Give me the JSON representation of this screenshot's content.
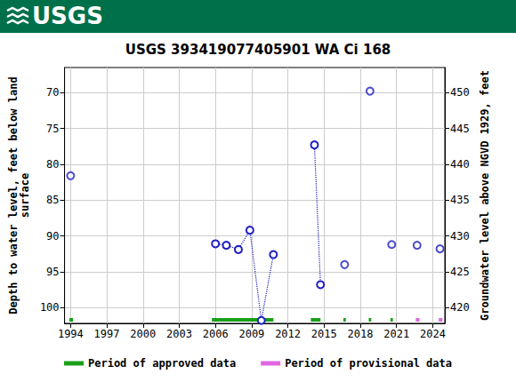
{
  "header": {
    "logo": "USGS"
  },
  "chart_data": {
    "type": "scatter",
    "title": "USGS 393419077405901 WA Ci 168",
    "y_label": [
      "Depth to water level, feet below land",
      "surface"
    ],
    "y2_label": "Groundwater level above NGVD 1929, feet",
    "xlim": [
      1993.5,
      2025.0
    ],
    "xticks": [
      1994,
      1997,
      2000,
      2003,
      2006,
      2009,
      2012,
      2015,
      2018,
      2021,
      2024
    ],
    "ylim": [
      102.2,
      66.5
    ],
    "yticks": [
      70,
      75,
      80,
      85,
      90,
      95,
      100
    ],
    "y2lim": [
      417.8,
      453.5
    ],
    "y2ticks": [
      420,
      425,
      430,
      435,
      440,
      445,
      450
    ],
    "grid": true,
    "legend": "bottom",
    "series": [
      {
        "type": "scatter",
        "color": "#2020c0",
        "marker": "circle_open",
        "x": [
          1994.0,
          2016.7,
          2018.8,
          2020.6,
          2022.7,
          2024.6
        ],
        "values": [
          81.6,
          94.0,
          69.8,
          91.2,
          91.3,
          91.8
        ]
      },
      {
        "type": "line",
        "color": "#2020c0",
        "marker": "circle_open",
        "line_style": "dotted",
        "x": [
          2006.0,
          2006.9,
          2007.9,
          2008.85,
          2009.8,
          2010.8
        ],
        "values": [
          91.1,
          91.3,
          91.9,
          89.2,
          101.8,
          92.6
        ]
      },
      {
        "type": "line",
        "color": "#2020c0",
        "marker": "circle_open",
        "line_style": "dotted",
        "x": [
          2014.2,
          2014.7
        ],
        "values": [
          77.3,
          96.8
        ]
      }
    ],
    "periods": [
      {
        "name": "Period of approved data",
        "color": "#1a9f1a",
        "ranges": [
          [
            1993.9,
            1994.2
          ],
          [
            2005.7,
            2010.8
          ],
          [
            2013.9,
            2014.7
          ],
          [
            2016.6,
            2016.8
          ],
          [
            2018.7,
            2018.9
          ],
          [
            2020.5,
            2020.7
          ]
        ]
      },
      {
        "name": "Period of provisional data",
        "color": "#e066e0",
        "ranges": [
          [
            2022.6,
            2022.9
          ],
          [
            2024.5,
            2024.8
          ]
        ]
      }
    ]
  }
}
